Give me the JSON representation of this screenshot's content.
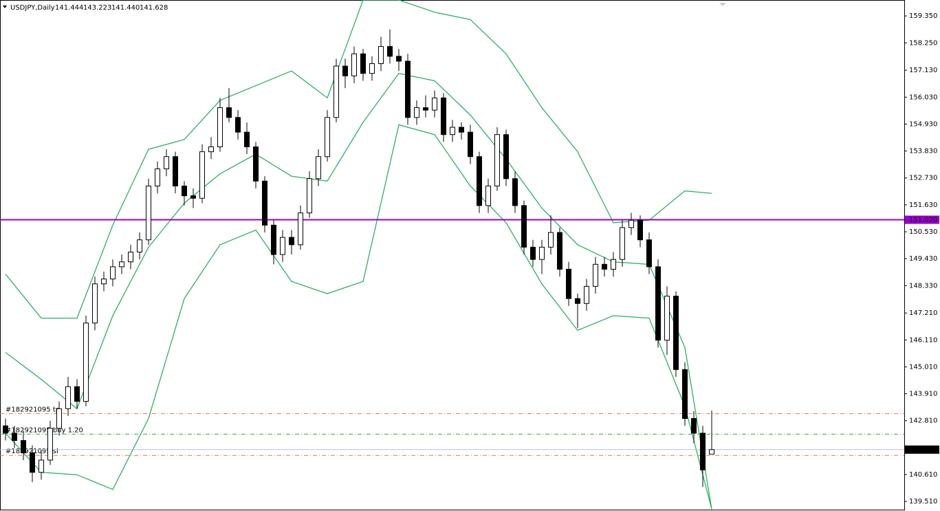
{
  "chart_data": {
    "type": "candlestick",
    "symbol": "USDJPY,Daily",
    "header_values": [
      "141.444",
      "143.223",
      "141.440",
      "141.628"
    ],
    "ylim": [
      139.12,
      160.0
    ],
    "yticks": [
      {
        "value": 159.35,
        "label": "159.350"
      },
      {
        "value": 158.25,
        "label": "158.250"
      },
      {
        "value": 157.13,
        "label": "157.130"
      },
      {
        "value": 156.03,
        "label": "156.030"
      },
      {
        "value": 154.93,
        "label": "154.930"
      },
      {
        "value": 153.83,
        "label": "153.830"
      },
      {
        "value": 152.73,
        "label": "152.730"
      },
      {
        "value": 151.63,
        "label": "151.630"
      },
      {
        "value": 150.53,
        "label": "150.530"
      },
      {
        "value": 149.43,
        "label": "149.430"
      },
      {
        "value": 148.33,
        "label": "148.330"
      },
      {
        "value": 147.21,
        "label": "147.210"
      },
      {
        "value": 146.11,
        "label": "146.110"
      },
      {
        "value": 145.01,
        "label": "145.010"
      },
      {
        "value": 143.91,
        "label": "143.910"
      },
      {
        "value": 142.81,
        "label": "142.810"
      },
      {
        "value": 140.61,
        "label": "140.610"
      },
      {
        "value": 139.51,
        "label": "139.510"
      }
    ],
    "open": [
      142.6,
      142.3,
      142.0,
      141.5,
      140.7,
      141.2,
      142.5,
      143.3,
      144.2,
      143.6,
      146.8,
      148.4,
      148.6,
      149.1,
      149.3,
      149.7,
      150.2,
      152.4,
      153.1,
      153.6,
      152.4,
      152.0,
      151.9,
      153.8,
      154.0,
      155.6,
      155.2,
      154.6,
      154.0,
      152.6,
      150.8,
      149.6,
      150.3,
      150.0,
      151.3,
      152.7,
      153.6,
      155.2,
      157.3,
      156.9,
      157.8,
      157.0,
      157.4,
      158.1,
      157.7,
      157.5,
      155.2,
      155.6,
      155.5,
      156.0,
      154.5,
      154.8,
      154.6,
      153.6,
      151.6,
      152.4,
      154.5,
      152.7,
      151.6,
      149.9,
      149.4,
      149.9,
      150.5,
      149.0,
      147.8,
      147.6,
      148.3,
      149.2,
      149.0,
      149.4,
      150.7,
      151.0,
      150.2,
      149.1,
      146.1,
      147.9,
      144.9,
      142.9,
      142.3,
      141.444
    ],
    "high": [
      142.9,
      142.6,
      142.4,
      141.8,
      141.6,
      142.8,
      143.6,
      144.6,
      144.5,
      147.1,
      148.7,
      148.9,
      149.4,
      149.6,
      150.0,
      150.5,
      152.7,
      153.4,
      153.9,
      153.8,
      152.6,
      152.3,
      154.1,
      154.4,
      156.0,
      156.4,
      155.5,
      155.0,
      154.2,
      152.8,
      151.0,
      150.6,
      150.6,
      151.6,
      153.0,
      153.9,
      155.5,
      157.6,
      157.6,
      158.1,
      158.0,
      157.7,
      158.5,
      158.8,
      158.0,
      157.8,
      155.9,
      156.1,
      156.3,
      156.2,
      155.1,
      155.0,
      154.9,
      153.8,
      152.7,
      154.8,
      154.7,
      153.0,
      151.8,
      150.2,
      150.2,
      151.2,
      150.7,
      149.3,
      148.0,
      148.6,
      149.5,
      149.5,
      149.7,
      151.0,
      151.3,
      151.2,
      150.5,
      149.4,
      148.3,
      148.1,
      145.2,
      143.2,
      142.6,
      143.223
    ],
    "low": [
      142.0,
      141.7,
      141.2,
      140.3,
      140.4,
      141.0,
      142.2,
      143.0,
      143.3,
      143.4,
      146.5,
      148.1,
      148.3,
      148.8,
      149.0,
      149.4,
      150.0,
      152.1,
      152.8,
      152.1,
      151.6,
      151.5,
      151.7,
      153.5,
      153.8,
      155.0,
      154.3,
      153.7,
      152.3,
      150.5,
      149.2,
      149.3,
      149.6,
      149.8,
      151.1,
      152.4,
      153.4,
      155.0,
      156.4,
      156.6,
      156.7,
      156.7,
      157.1,
      157.4,
      157.1,
      154.9,
      154.9,
      155.2,
      155.2,
      154.2,
      154.2,
      154.3,
      153.3,
      151.3,
      151.3,
      152.2,
      152.4,
      151.3,
      149.6,
      149.1,
      148.8,
      149.6,
      148.7,
      147.5,
      146.6,
      147.3,
      148.0,
      148.7,
      148.7,
      149.1,
      150.4,
      149.9,
      148.8,
      145.8,
      145.5,
      144.6,
      142.6,
      141.9,
      140.1,
      141.44
    ],
    "close": [
      142.3,
      142.0,
      141.5,
      140.7,
      141.2,
      142.5,
      143.3,
      144.2,
      143.6,
      146.8,
      148.4,
      148.6,
      149.1,
      149.3,
      149.7,
      150.2,
      152.4,
      153.1,
      153.6,
      152.4,
      152.0,
      151.9,
      153.8,
      154.0,
      155.6,
      155.2,
      154.6,
      154.0,
      152.6,
      150.8,
      149.6,
      150.3,
      150.0,
      151.3,
      152.7,
      153.6,
      155.2,
      157.3,
      156.9,
      157.8,
      157.0,
      157.4,
      158.1,
      157.7,
      157.5,
      155.2,
      155.6,
      155.5,
      156.0,
      154.5,
      154.8,
      154.6,
      153.6,
      151.6,
      152.4,
      154.5,
      152.7,
      151.6,
      149.9,
      149.4,
      149.9,
      150.5,
      149.0,
      147.8,
      147.6,
      148.3,
      149.2,
      149.0,
      149.4,
      150.7,
      151.0,
      150.2,
      149.1,
      146.1,
      147.9,
      144.9,
      142.9,
      142.3,
      140.8,
      141.628
    ],
    "bands": {
      "color": "#2fae62",
      "x": [
        0,
        4,
        8,
        12,
        16,
        20,
        24,
        28,
        32,
        36,
        40,
        44,
        48,
        52,
        56,
        60,
        64,
        68,
        72,
        76,
        79
      ],
      "upper": [
        148.8,
        147.0,
        147.0,
        150.8,
        153.9,
        154.3,
        155.9,
        156.5,
        157.1,
        156.0,
        160.0,
        160.0,
        159.5,
        159.2,
        157.8,
        155.6,
        153.8,
        150.9,
        151.0,
        152.2,
        152.1
      ],
      "middle": [
        145.6,
        144.5,
        143.3,
        147.1,
        149.9,
        151.7,
        152.9,
        153.7,
        152.8,
        152.6,
        155.0,
        157.0,
        156.7,
        155.3,
        153.5,
        151.5,
        150.0,
        149.3,
        149.2,
        145.8,
        139.2
      ],
      "lower": [
        142.3,
        140.7,
        140.6,
        140.0,
        142.9,
        147.8,
        150.0,
        150.6,
        148.5,
        148.0,
        148.5,
        154.9,
        154.5,
        152.4,
        150.9,
        148.4,
        146.5,
        147.1,
        147.0,
        143.4,
        139.2
      ]
    },
    "level": {
      "value": 151.02,
      "label": "151.020",
      "color": "#9900cc"
    },
    "last_price": {
      "value": 141.628,
      "label": "141.628"
    },
    "orders": [
      {
        "label": "#182921095 tp",
        "value": 143.1,
        "color": "#e8734a"
      },
      {
        "label": "#182921095 buy 1.20",
        "value": 142.26,
        "color": "#3a9a4a"
      },
      {
        "label": "#182921095 sl",
        "value": 141.39,
        "color": "#e8734a"
      }
    ]
  }
}
